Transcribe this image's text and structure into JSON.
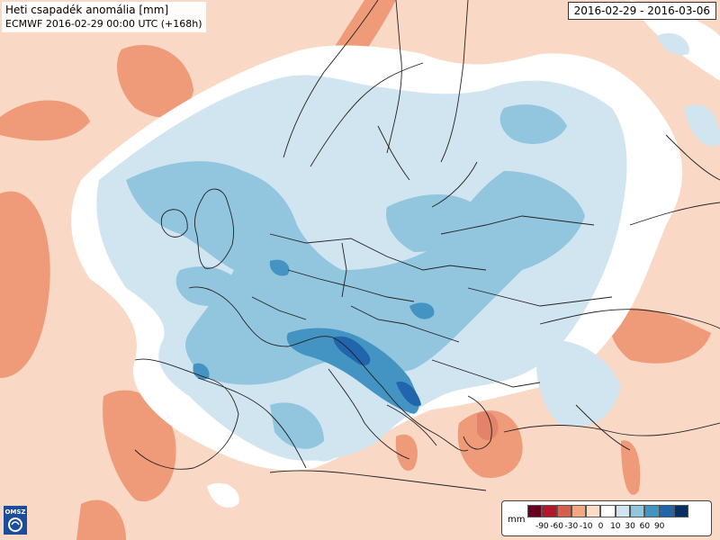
{
  "title": {
    "line1": "Heti csapadék anomália [mm]",
    "line2": "ECMWF 2016-02-29 00:00 UTC (+168h)"
  },
  "period": "2016-02-29 - 2016-03-06",
  "logo_text": "OMSZ",
  "legend": {
    "unit": "mm",
    "swatches": [
      {
        "color": "#67001f",
        "range": "< -90"
      },
      {
        "color": "#b2182b",
        "range": "-90 to -60"
      },
      {
        "color": "#d6604d",
        "range": "-60 to -30"
      },
      {
        "color": "#f4a582",
        "range": "-30 to -10"
      },
      {
        "color": "#fddbc7",
        "range": "-10 to 0"
      },
      {
        "color": "#ffffff",
        "range": "0"
      },
      {
        "color": "#d1e5f0",
        "range": "0 to 10"
      },
      {
        "color": "#92c5de",
        "range": "10 to 30"
      },
      {
        "color": "#4393c3",
        "range": "30 to 60"
      },
      {
        "color": "#2166ac",
        "range": "60 to 90"
      },
      {
        "color": "#053061",
        "range": "> 90"
      }
    ],
    "tick_labels": [
      "-90",
      "-60",
      "-30",
      "-10",
      "0",
      "10",
      "30",
      "60",
      "90"
    ]
  },
  "colors": {
    "background_negative": "#f9d9c6",
    "land_outline": "#222222",
    "positive_light": "#d1e5f0",
    "positive_mid": "#92c5de",
    "positive_strong": "#4393c3",
    "positive_max": "#2166ac",
    "negative_mid": "#ef9a78"
  }
}
